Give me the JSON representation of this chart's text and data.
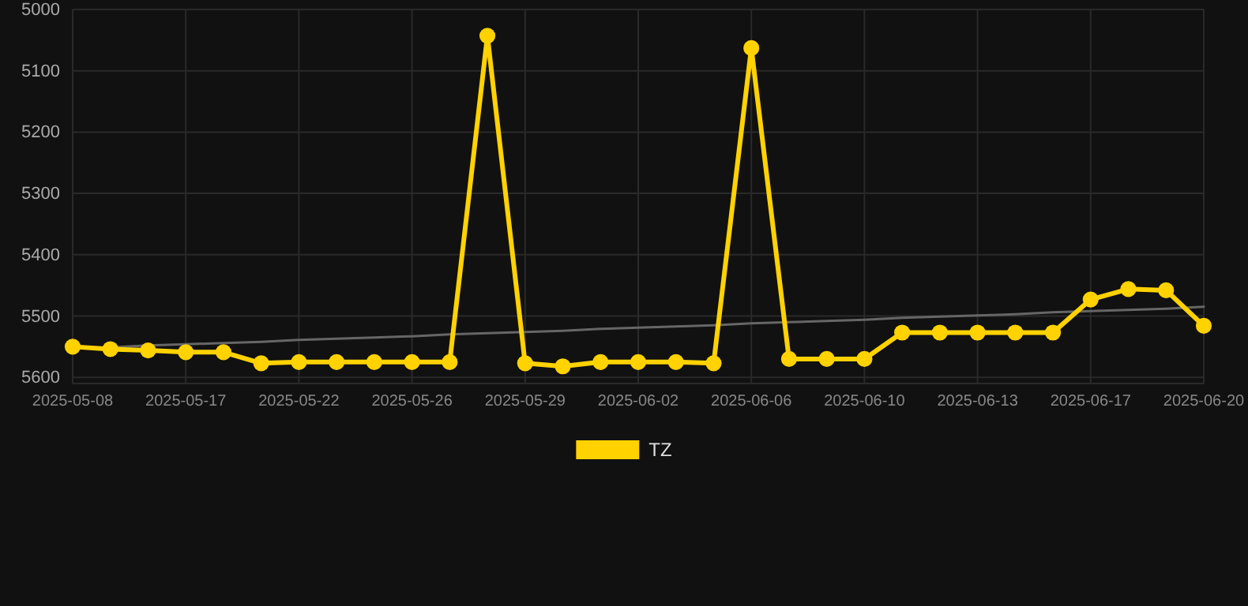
{
  "chart_data": {
    "type": "line",
    "categories": [
      "2025-05-08",
      null,
      null,
      "2025-05-17",
      null,
      null,
      "2025-05-22",
      null,
      null,
      "2025-05-26",
      null,
      null,
      "2025-05-29",
      null,
      null,
      "2025-06-02",
      null,
      null,
      "2025-06-06",
      null,
      null,
      "2025-06-10",
      null,
      null,
      "2025-06-13",
      null,
      null,
      "2025-06-17",
      null,
      null,
      "2025-06-20"
    ],
    "series": [
      {
        "name": "TZ",
        "color": "#ffd200",
        "values": [
          5550,
          5554,
          5556,
          5559,
          5559,
          5577,
          5575,
          5575,
          5575,
          5575,
          5575,
          5043,
          5577,
          5582,
          5575,
          5575,
          5575,
          5577,
          5063,
          5570,
          5570,
          5570,
          5527,
          5527,
          5527,
          5527,
          5527,
          5473,
          5456,
          5458,
          5516
        ]
      },
      {
        "type": "line",
        "color": "#666666",
        "values": [
          5553,
          5551,
          5548,
          5546,
          5544,
          5542,
          5539,
          5537,
          5535,
          5533,
          5530,
          5528,
          5526,
          5524,
          5521,
          5519,
          5517,
          5515,
          5512,
          5510,
          5508,
          5506,
          5503,
          5501,
          5499,
          5497,
          5494,
          5492,
          5490,
          5488,
          5485
        ],
        "marker": "none"
      }
    ],
    "ylim": [
      5610,
      5000
    ],
    "yticks": [
      5000,
      5100,
      5200,
      5300,
      5400,
      5500,
      5600
    ],
    "grid": true,
    "legend": "bottom",
    "marker": "circle",
    "line_style": "solid"
  }
}
